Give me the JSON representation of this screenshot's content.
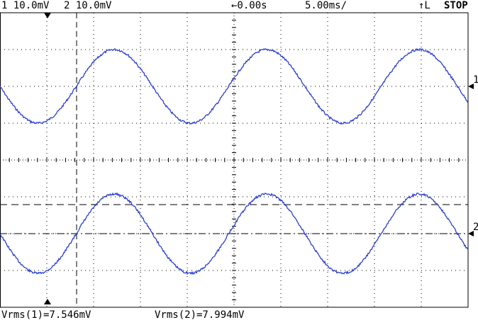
{
  "header": {
    "ch1_scale": "1 10.0mV",
    "ch2_scale": "2 10.0mV",
    "time_offset": "←0.00s",
    "timebase": "5.00ms/",
    "trigger": "↑L",
    "status": "STOP"
  },
  "markers": {
    "ch1": "1",
    "ch2": "2"
  },
  "footer": {
    "measurements": [
      "Vrms(1)=7.546mV",
      "Vrms(2)=7.994mV"
    ]
  }
}
